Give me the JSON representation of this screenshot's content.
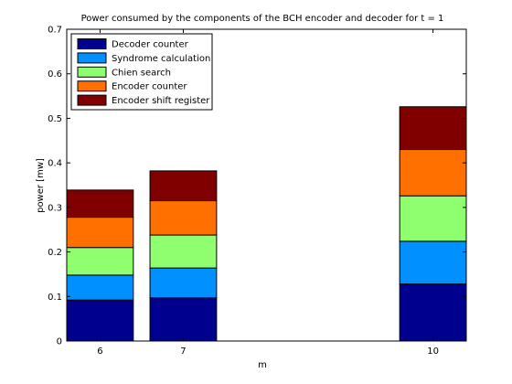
{
  "chart_data": {
    "type": "bar",
    "stacked": true,
    "title": "Power consumed by the components of the BCH encoder and decoder for t = 1",
    "xlabel": "m",
    "ylabel": "power [mw]",
    "x": [
      6,
      7,
      10
    ],
    "xtick_labels": [
      "6",
      "7",
      "10"
    ],
    "xlim": [
      5.6,
      10.4
    ],
    "ylim": [
      0,
      0.7
    ],
    "yticks": [
      0,
      0.1,
      0.2,
      0.3,
      0.4,
      0.5,
      0.6,
      0.7
    ],
    "ytick_labels": [
      "0",
      "0.1",
      "0.2",
      "0.3",
      "0.4",
      "0.5",
      "0.6",
      "0.7"
    ],
    "grid": false,
    "legend_position": "top-left",
    "series": [
      {
        "name": "Decoder counter",
        "color": "#00008f",
        "values": [
          0.092,
          0.097,
          0.128
        ]
      },
      {
        "name": "Syndrome calculation",
        "color": "#0090ff",
        "values": [
          0.056,
          0.067,
          0.096
        ]
      },
      {
        "name": "Chien search",
        "color": "#8fff70",
        "values": [
          0.062,
          0.074,
          0.102
        ]
      },
      {
        "name": "Encoder counter",
        "color": "#ff7000",
        "values": [
          0.068,
          0.077,
          0.104
        ]
      },
      {
        "name": "Encoder shift register",
        "color": "#800000",
        "values": [
          0.061,
          0.067,
          0.096
        ]
      }
    ]
  }
}
